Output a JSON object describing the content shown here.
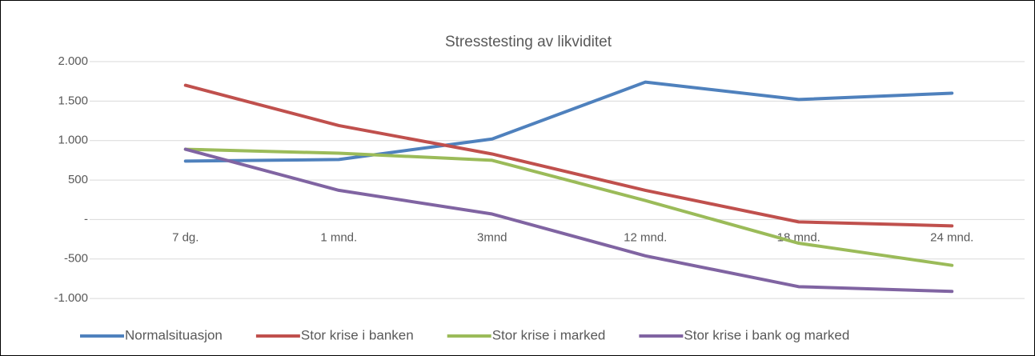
{
  "chart_data": {
    "type": "line",
    "title": "Stresstesting av likviditet",
    "categories": [
      "7 dg.",
      "1 mnd.",
      "3mnd",
      "12 mnd.",
      "18 mnd.",
      "24 mnd."
    ],
    "series": [
      {
        "name": "Normalsituasjon",
        "color": "#4f81bd",
        "values": [
          740,
          760,
          1020,
          1740,
          1520,
          1600
        ]
      },
      {
        "name": "Stor krise i banken",
        "color": "#c0504d",
        "values": [
          1700,
          1190,
          830,
          370,
          -30,
          -80
        ]
      },
      {
        "name": "Stor krise i marked",
        "color": "#9bbb59",
        "values": [
          890,
          840,
          750,
          240,
          -300,
          -580
        ]
      },
      {
        "name": "Stor krise i bank og marked",
        "color": "#8064a2",
        "values": [
          890,
          370,
          70,
          -460,
          -850,
          -910
        ]
      }
    ],
    "ylim": [
      -1100,
      2000
    ],
    "yticks": [
      {
        "value": 2000,
        "label": "2.000"
      },
      {
        "value": 1500,
        "label": "1.500"
      },
      {
        "value": 1000,
        "label": "1.000"
      },
      500,
      {
        "value": 0,
        "label": "-"
      },
      -500,
      {
        "value": -1000,
        "label": "-1.000"
      }
    ],
    "grid": true,
    "legend": "bottom"
  }
}
